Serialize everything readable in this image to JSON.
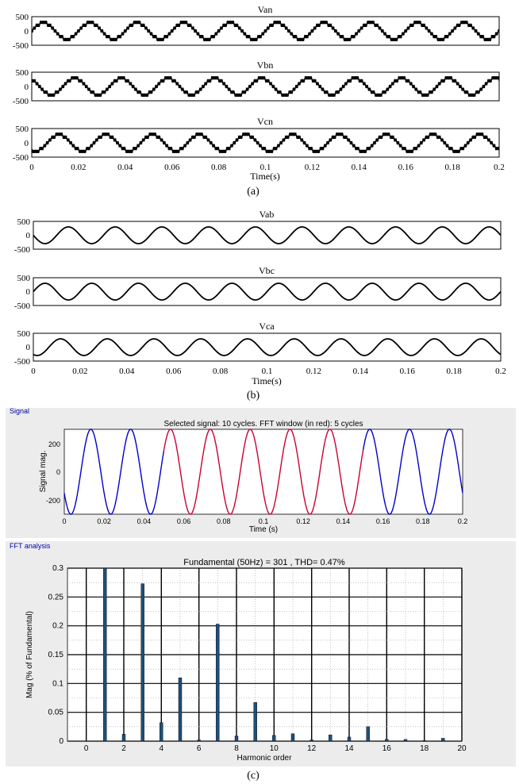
{
  "chart_data": [
    {
      "type": "line",
      "panel": "a",
      "waveform": "stepped",
      "caption": "(a)",
      "xlabel": "Time(s)",
      "xlim": [
        0,
        0.2
      ],
      "x_ticks": [
        "0",
        "0.02",
        "0.04",
        "0.06",
        "0.08",
        "0.1",
        "0.12",
        "0.14",
        "0.16",
        "0.18",
        "0.2"
      ],
      "subplots": [
        {
          "title": "Van",
          "ylim": [
            -500,
            500
          ],
          "y_ticks": [
            "500",
            "0",
            "-500"
          ],
          "amplitude": 300,
          "frequency_hz": 50,
          "phase_deg": 0,
          "cycles": 10,
          "color": "#000000"
        },
        {
          "title": "Vbn",
          "ylim": [
            -500,
            500
          ],
          "y_ticks": [
            "500",
            "0",
            "-500"
          ],
          "amplitude": 300,
          "frequency_hz": 50,
          "phase_deg": 120,
          "cycles": 10,
          "color": "#000000"
        },
        {
          "title": "Vcn",
          "ylim": [
            -500,
            500
          ],
          "y_ticks": [
            "500",
            "0",
            "-500"
          ],
          "amplitude": 300,
          "frequency_hz": 50,
          "phase_deg": 240,
          "cycles": 10,
          "color": "#000000"
        }
      ]
    },
    {
      "type": "line",
      "panel": "b",
      "waveform": "sine",
      "caption": "(b)",
      "xlabel": "Time(s)",
      "xlim": [
        0,
        0.2
      ],
      "x_ticks": [
        "0",
        "0.02",
        "0.04",
        "0.06",
        "0.08",
        "0.1",
        "0.12",
        "0.14",
        "0.16",
        "0.18",
        "0.2"
      ],
      "subplots": [
        {
          "title": "Vab",
          "ylim": [
            -500,
            500
          ],
          "y_ticks": [
            "500",
            "0",
            "-500"
          ],
          "amplitude": 300,
          "frequency_hz": 50,
          "phase_deg": 180,
          "cycles": 10,
          "color": "#000000"
        },
        {
          "title": "Vbc",
          "ylim": [
            -500,
            500
          ],
          "y_ticks": [
            "500",
            "0",
            "-500"
          ],
          "amplitude": 300,
          "frequency_hz": 50,
          "phase_deg": 0,
          "cycles": 10,
          "color": "#000000"
        },
        {
          "title": "Vca",
          "ylim": [
            -500,
            500
          ],
          "y_ticks": [
            "500",
            "0",
            "-500"
          ],
          "amplitude": 300,
          "frequency_hz": 50,
          "phase_deg": 240,
          "cycles": 10,
          "color": "#000000"
        }
      ]
    },
    {
      "type": "line",
      "panel": "signal",
      "group_label": "Signal",
      "title": "Selected signal: 10 cycles. FFT window (in red): 5 cycles",
      "xlabel": "Time (s)",
      "ylabel": "Signal mag.",
      "xlim": [
        0,
        0.2
      ],
      "ylim": [
        -300,
        300
      ],
      "x_ticks": [
        "0",
        "0.02",
        "0.04",
        "0.06",
        "0.08",
        "0.1",
        "0.12",
        "0.14",
        "0.16",
        "0.18",
        "0.2"
      ],
      "y_ticks": [
        "200",
        "0",
        "-200"
      ],
      "amplitude": 300,
      "frequency_hz": 50,
      "phase_deg": 210,
      "fft_window": [
        0.05,
        0.15
      ],
      "colors": {
        "signal": "#0000cc",
        "window": "#cc0033"
      }
    },
    {
      "type": "bar",
      "panel": "fft",
      "group_label": "FFT analysis",
      "title": "Fundamental (50Hz) = 301 , THD= 0.47%",
      "xlabel": "Harmonic order",
      "ylabel": "Mag (% of Fundamental)",
      "caption": "(c)",
      "xlim": [
        -1,
        20
      ],
      "ylim": [
        0,
        0.3
      ],
      "x_ticks": [
        "0",
        "2",
        "4",
        "6",
        "8",
        "10",
        "12",
        "14",
        "16",
        "18",
        "20"
      ],
      "y_ticks": [
        "0.3",
        "0.25",
        "0.2",
        "0.15",
        "0.1",
        "0.05",
        "0"
      ],
      "categories": [
        0,
        1,
        2,
        3,
        4,
        5,
        6,
        7,
        8,
        9,
        10,
        11,
        12,
        13,
        14,
        15,
        16,
        17,
        18,
        19
      ],
      "values": [
        0,
        0.3,
        0.012,
        0.273,
        0.032,
        0.11,
        0.002,
        0.203,
        0.009,
        0.067,
        0.01,
        0.013,
        0.002,
        0.011,
        0.007,
        0.025,
        0.003,
        0.003,
        0.001,
        0.005
      ],
      "bar_color": "#1f4e79"
    }
  ]
}
